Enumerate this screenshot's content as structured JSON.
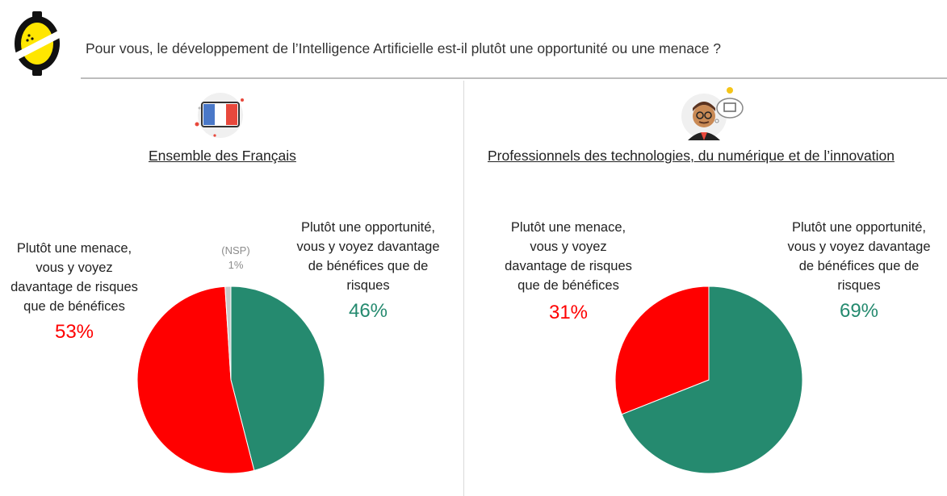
{
  "question": "Pour vous, le développement de l’Intelligence Artificielle est-il plutôt une opportunité ou une menace ?",
  "colors": {
    "menace": "#ff0000",
    "opportunite": "#258a6f",
    "nsp": "#c8c8c8"
  },
  "panels": [
    {
      "title": "Ensemble des Français",
      "icon": "french-flag-icon",
      "labels": {
        "menace_text": [
          "Plutôt une menace,",
          "vous y voyez",
          "davantage de risques",
          "que de bénéfices"
        ],
        "menace_pct": "53%",
        "opportunite_text": [
          "Plutôt une opportunité,",
          "vous y voyez davantage",
          "de bénéfices que de",
          "risques"
        ],
        "opportunite_pct": "46%",
        "nsp_text": "(NSP)",
        "nsp_pct": "1%"
      }
    },
    {
      "title": "Professionnels des technologies, du numérique et de l’innovation",
      "icon": "tech-professional-icon",
      "labels": {
        "menace_text": [
          "Plutôt une menace,",
          "vous y voyez",
          "davantage de risques",
          "que de bénéfices"
        ],
        "menace_pct": "31%",
        "opportunite_text": [
          "Plutôt une opportunité,",
          "vous y voyez davantage",
          "de bénéfices que de",
          "risques"
        ],
        "opportunite_pct": "69%"
      }
    }
  ],
  "chart_data": [
    {
      "type": "pie",
      "title": "Ensemble des Français",
      "slices": [
        {
          "label": "Plutôt une opportunité, vous y voyez davantage de bénéfices que de risques",
          "value": 46,
          "color": "#258a6f"
        },
        {
          "label": "Plutôt une menace, vous y voyez davantage de risques que de bénéfices",
          "value": 53,
          "color": "#ff0000"
        },
        {
          "label": "(NSP)",
          "value": 1,
          "color": "#c8c8c8"
        }
      ]
    },
    {
      "type": "pie",
      "title": "Professionnels des technologies, du numérique et de l’innovation",
      "slices": [
        {
          "label": "Plutôt une opportunité, vous y voyez davantage de bénéfices que de risques",
          "value": 69,
          "color": "#258a6f"
        },
        {
          "label": "Plutôt une menace, vous y voyez davantage de risques que de bénéfices",
          "value": 31,
          "color": "#ff0000"
        }
      ]
    }
  ]
}
